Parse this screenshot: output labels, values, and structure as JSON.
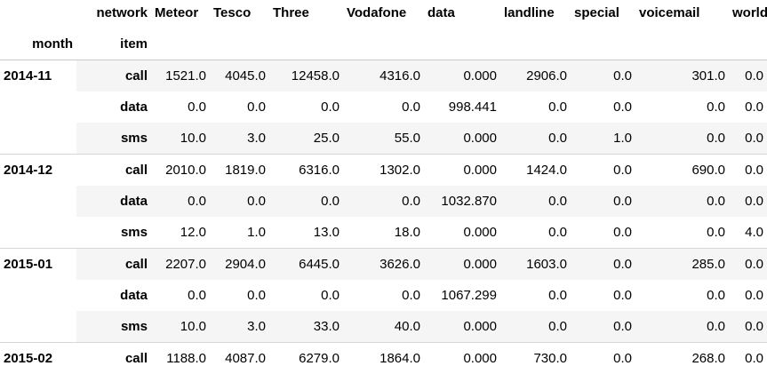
{
  "table": {
    "column_level_name": "network",
    "columns": [
      "Meteor",
      "Tesco",
      "Three",
      "Vodafone",
      "data",
      "landline",
      "special",
      "voicemail",
      "world"
    ],
    "index_names": [
      "month",
      "item"
    ],
    "groups": [
      {
        "month": "2014-11",
        "rows": [
          {
            "item": "call",
            "values": [
              "1521.0",
              "4045.0",
              "12458.0",
              "4316.0",
              "0.000",
              "2906.0",
              "0.0",
              "301.0",
              "0.0"
            ]
          },
          {
            "item": "data",
            "values": [
              "0.0",
              "0.0",
              "0.0",
              "0.0",
              "998.441",
              "0.0",
              "0.0",
              "0.0",
              "0.0"
            ]
          },
          {
            "item": "sms",
            "values": [
              "10.0",
              "3.0",
              "25.0",
              "55.0",
              "0.000",
              "0.0",
              "1.0",
              "0.0",
              "0.0"
            ]
          }
        ]
      },
      {
        "month": "2014-12",
        "rows": [
          {
            "item": "call",
            "values": [
              "2010.0",
              "1819.0",
              "6316.0",
              "1302.0",
              "0.000",
              "1424.0",
              "0.0",
              "690.0",
              "0.0"
            ]
          },
          {
            "item": "data",
            "values": [
              "0.0",
              "0.0",
              "0.0",
              "0.0",
              "1032.870",
              "0.0",
              "0.0",
              "0.0",
              "0.0"
            ]
          },
          {
            "item": "sms",
            "values": [
              "12.0",
              "1.0",
              "13.0",
              "18.0",
              "0.000",
              "0.0",
              "0.0",
              "0.0",
              "4.0"
            ]
          }
        ]
      },
      {
        "month": "2015-01",
        "rows": [
          {
            "item": "call",
            "values": [
              "2207.0",
              "2904.0",
              "6445.0",
              "3626.0",
              "0.000",
              "1603.0",
              "0.0",
              "285.0",
              "0.0"
            ]
          },
          {
            "item": "data",
            "values": [
              "0.0",
              "0.0",
              "0.0",
              "0.0",
              "1067.299",
              "0.0",
              "0.0",
              "0.0",
              "0.0"
            ]
          },
          {
            "item": "sms",
            "values": [
              "10.0",
              "3.0",
              "33.0",
              "40.0",
              "0.000",
              "0.0",
              "0.0",
              "0.0",
              "0.0"
            ]
          }
        ]
      },
      {
        "month": "2015-02",
        "rows": [
          {
            "item": "call",
            "values": [
              "1188.0",
              "4087.0",
              "6279.0",
              "1864.0",
              "0.000",
              "730.0",
              "0.0",
              "268.0",
              "0.0"
            ]
          }
        ]
      }
    ]
  }
}
